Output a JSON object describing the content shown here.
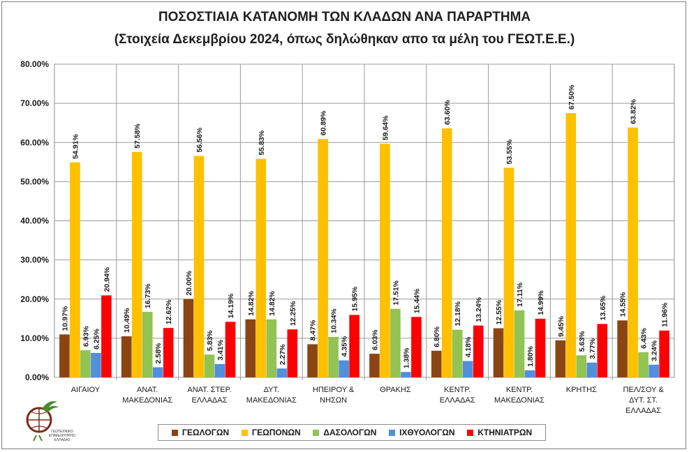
{
  "title": "ΠΟΣΟΣΤΙΑΙΑ ΚΑΤΑΝΟΜΗ ΤΩΝ ΚΛΑΔΩΝ ΑΝΑ ΠΑΡΑΡΤΗΜΑ",
  "subtitle": "(Στοιχεία Δεκεμβρίου 2024, όπως δηλώθηκαν απο τα μέλη του ΓΕΩΤ.Ε.Ε.)",
  "logo": {
    "text": "ΓΕΩΤΕΧΝΙΚΟ ΕΠΙΜΕΛΗΤΗΡΙΟ ΕΛΛΑΔΑΣ",
    "icon": "geotee-logo-icon"
  },
  "colors": {
    "ΓΕΩΛΟΓΩΝ": "#8B4513",
    "ΓΕΩΠΟΝΩΝ": "#FFC000",
    "ΔΑΣΟΛΟΓΩΝ": "#92C353",
    "ΙΧΘΥΟΛΟΓΩΝ": "#4F8FDC",
    "ΚΤΗΝΙΑΤΡΩΝ": "#FF0000"
  },
  "chart_data": {
    "type": "bar",
    "categories": [
      [
        "ΑΙΓΑΙΟΥ"
      ],
      [
        "ΑΝΑΤ.",
        "ΜΑΚΕΔΟΝΙΑΣ"
      ],
      [
        "ΑΝΑΤ. ΣΤΕΡ.",
        "ΕΛΛΑΔΑΣ"
      ],
      [
        "ΔΥΤ.",
        "ΜΑΚΕΔΟΝΙΑΣ"
      ],
      [
        "ΗΠΕΙΡΟΥ &",
        "ΝΗΣΩΝ"
      ],
      [
        "ΘΡΑΚΗΣ"
      ],
      [
        "ΚΕΝΤΡ.",
        "ΕΛΛΑΔΑΣ"
      ],
      [
        "ΚΕΝΤΡ.",
        "ΜΑΚΕΔΟΝΙΑΣ"
      ],
      [
        "ΚΡΗΤΗΣ"
      ],
      [
        "ΠΕΛ/ΣΟΥ &",
        "ΔΥΤ. ΣΤ.",
        "ΕΛΛΑΔΑΣ"
      ]
    ],
    "series": [
      {
        "name": "ΓΕΩΛΟΓΩΝ",
        "values": [
          10.97,
          10.49,
          20.0,
          14.82,
          8.47,
          6.03,
          6.8,
          12.55,
          9.45,
          14.55
        ]
      },
      {
        "name": "ΓΕΩΠΟΝΩΝ",
        "values": [
          54.91,
          57.58,
          56.56,
          55.83,
          60.89,
          59.64,
          63.6,
          53.55,
          67.5,
          63.82
        ]
      },
      {
        "name": "ΔΑΣΟΛΟΓΩΝ",
        "values": [
          6.93,
          16.73,
          5.83,
          14.82,
          10.34,
          17.51,
          12.18,
          17.11,
          5.63,
          6.43
        ]
      },
      {
        "name": "ΙΧΘΥΟΛΟΓΩΝ",
        "values": [
          6.25,
          2.58,
          3.41,
          2.27,
          4.35,
          1.38,
          4.18,
          1.8,
          3.77,
          3.24
        ]
      },
      {
        "name": "ΚΤΗΝΙΑΤΡΩΝ",
        "values": [
          20.94,
          12.62,
          14.19,
          12.25,
          15.95,
          15.44,
          13.24,
          14.99,
          13.65,
          11.96
        ]
      }
    ],
    "ylim": [
      0,
      80
    ],
    "yticks": [
      "0.00%",
      "10.00%",
      "20.00%",
      "30.00%",
      "40.00%",
      "50.00%",
      "60.00%",
      "70.00%",
      "80.00%"
    ],
    "grid": true,
    "legend": "bottom"
  }
}
